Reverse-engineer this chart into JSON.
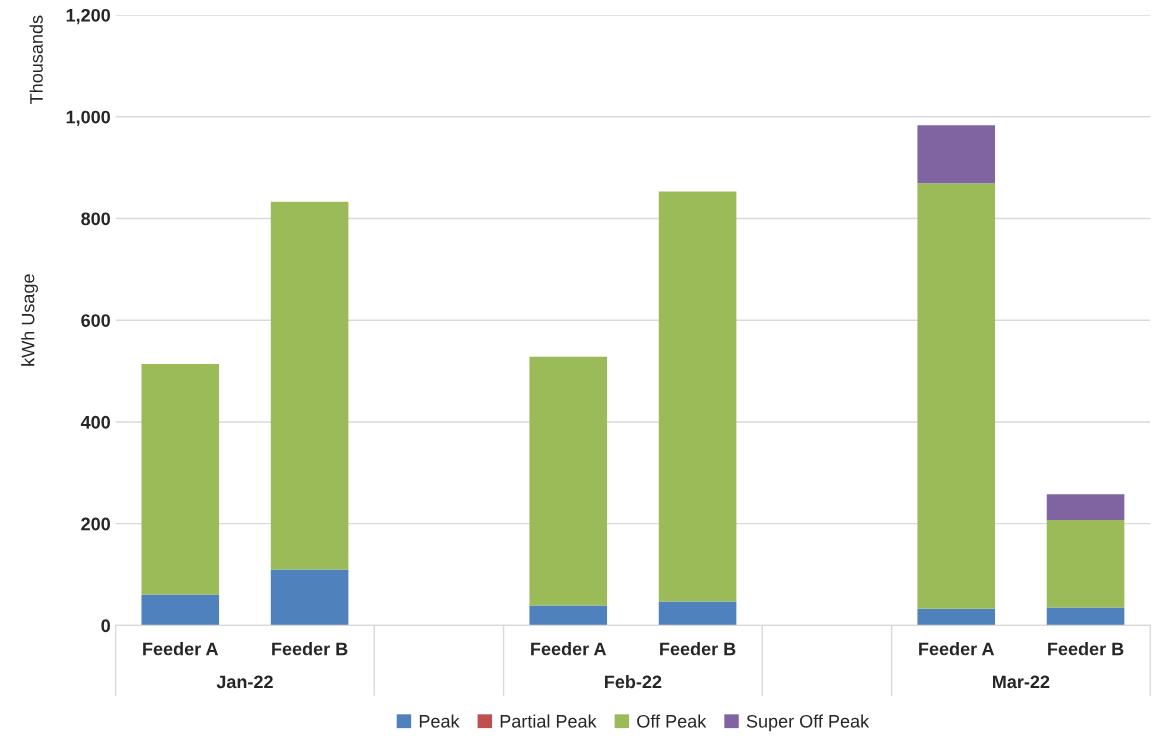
{
  "chart_data": {
    "type": "bar",
    "stacked": true,
    "categories": [
      "Feeder A",
      "Feeder B",
      null,
      "Feeder A",
      "Feeder B",
      null,
      "Feeder A",
      "Feeder B"
    ],
    "series": [
      {
        "name": "Peak",
        "color": "#4f81bd",
        "values": [
          61,
          110,
          null,
          39,
          47,
          null,
          33,
          35
        ]
      },
      {
        "name": "Partial Peak",
        "color": "#c0504d",
        "values": [
          0,
          0,
          null,
          0,
          0,
          null,
          0,
          0
        ]
      },
      {
        "name": "Off Peak",
        "color": "#9bbb59",
        "values": [
          453,
          723,
          null,
          489,
          806,
          null,
          836,
          172
        ]
      },
      {
        "name": "Super Off Peak",
        "color": "#8064a2",
        "values": [
          0,
          0,
          null,
          0,
          0,
          null,
          114,
          51
        ]
      }
    ],
    "ylabel": "kWh Usage",
    "annotations": [
      "Thousands",
      "Jan-22",
      "Feb-22",
      "Mar-22"
    ],
    "ylim": [
      0,
      1200
    ],
    "yticks": [
      0,
      200,
      400,
      600,
      800,
      {
        "value": 1000,
        "label": "1,000"
      },
      {
        "value": 1200,
        "label": "1,200"
      }
    ],
    "grid": "y",
    "legend": "bottom"
  }
}
